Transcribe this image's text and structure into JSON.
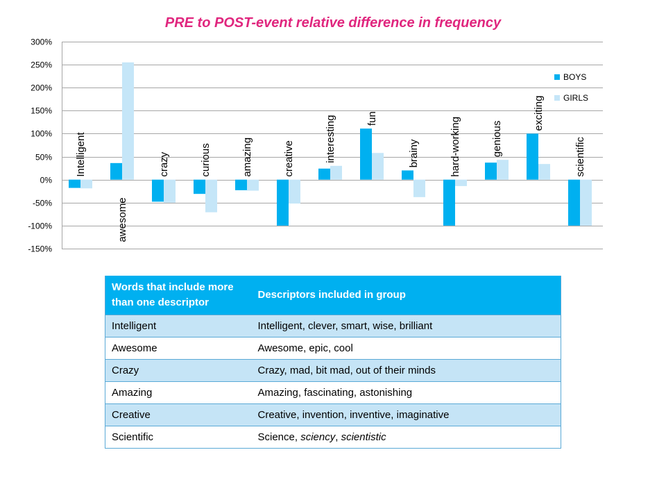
{
  "chart_data": {
    "type": "bar",
    "title": "PRE to POST-event relative difference in frequency",
    "categories": [
      "Intelligent",
      "awesome",
      "crazy",
      "curious",
      "amazing",
      "creative",
      "interesting",
      "fun",
      "brainy",
      "hard-working",
      "genious",
      "exciting",
      "scientific"
    ],
    "series": [
      {
        "name": "BOYS",
        "color": "#00b0f0",
        "values": [
          -18,
          36,
          -48,
          -31,
          -23,
          -100,
          24,
          111,
          20,
          -100,
          37,
          100,
          -100
        ]
      },
      {
        "name": "GIRLS",
        "color": "#c5e6f8",
        "values": [
          -19,
          255,
          -50,
          -71,
          -24,
          -52,
          30,
          58,
          -38,
          -14,
          43,
          34,
          -100
        ]
      }
    ],
    "ylim": [
      -150,
      300
    ],
    "yticks": [
      -150,
      -100,
      -50,
      0,
      50,
      100,
      150,
      200,
      250,
      300
    ],
    "ytick_labels": [
      "-150%",
      "-100%",
      "-50%",
      "0%",
      "50%",
      "100%",
      "150%",
      "200%",
      "250%",
      "300%"
    ],
    "label_positions": [
      "above",
      "below",
      "above",
      "above",
      "above",
      "above",
      "above",
      "above",
      "above",
      "above",
      "above",
      "above",
      "above"
    ],
    "xlabel": "",
    "ylabel": "",
    "grid": true,
    "legend": "right"
  },
  "table": {
    "header": [
      "Words that include more than one descriptor",
      "Descriptors included in group"
    ],
    "rows": [
      {
        "word": "Intelligent",
        "descriptors": "Intelligent, clever, smart, wise, brilliant"
      },
      {
        "word": "Awesome",
        "descriptors": "Awesome, epic, cool"
      },
      {
        "word": "Crazy",
        "descriptors": "Crazy, mad, bit mad, out of their minds"
      },
      {
        "word": "Amazing",
        "descriptors": "Amazing, fascinating, astonishing"
      },
      {
        "word": "Creative",
        "descriptors": "Creative, invention, inventive, imaginative"
      },
      {
        "word": "Scientific",
        "descriptors_plain": "Science, ",
        "descriptors_italic_1": "sciency",
        "descriptors_sep": ", ",
        "descriptors_italic_2": "scientistic"
      }
    ]
  }
}
